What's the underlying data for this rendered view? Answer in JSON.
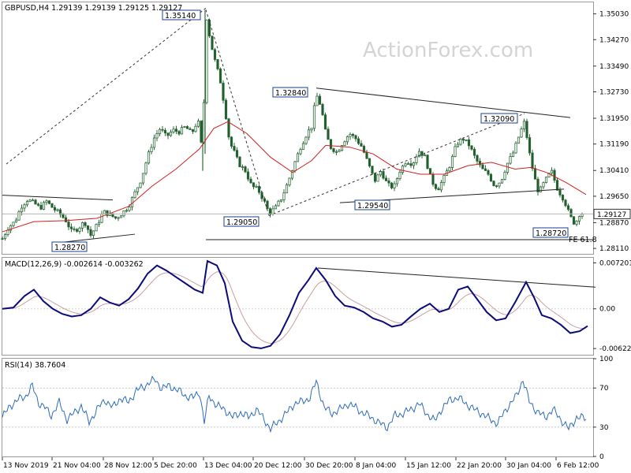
{
  "chart_data": [
    {
      "type": "candlestick",
      "title": "GBPUSD,H4  1.29139 1.29139 1.29125 1.29127",
      "watermark": "ActionForex.com",
      "y_ticks": [
        "1.35030",
        "1.34270",
        "1.33490",
        "1.32730",
        "1.31950",
        "1.31190",
        "1.30410",
        "1.29650",
        "1.28870",
        "1.28110"
      ],
      "ylim": [
        1.2795,
        1.3537
      ],
      "current_price": "1.29127",
      "x_ticks": [
        "13 Nov 2019",
        "21 Nov 04:00",
        "28 Nov 12:00",
        "5 Dec 20:00",
        "13 Dec 04:00",
        "20 Dec 12:00",
        "30 Dec 20:00",
        "8 Jan 04:00",
        "15 Jan 12:00",
        "22 Jan 20:00",
        "30 Jan 04:00",
        "6 Feb 12:00"
      ],
      "annotations": [
        "1.35140",
        "1.32840",
        "1.32090",
        "1.29050",
        "1.29540",
        "1.28720",
        "1.28270",
        "FE 61.8"
      ],
      "close_path": [
        [
          0,
          1.284
        ],
        [
          8,
          1.2875
        ],
        [
          16,
          1.289
        ],
        [
          24,
          1.2935
        ],
        [
          32,
          1.2955
        ],
        [
          40,
          1.2945
        ],
        [
          48,
          1.293
        ],
        [
          56,
          1.295
        ],
        [
          64,
          1.293
        ],
        [
          72,
          1.2915
        ],
        [
          80,
          1.2895
        ],
        [
          88,
          1.286
        ],
        [
          96,
          1.287
        ],
        [
          104,
          1.289
        ],
        [
          112,
          1.285
        ],
        [
          120,
          1.288
        ],
        [
          128,
          1.292
        ],
        [
          136,
          1.291
        ],
        [
          144,
          1.29
        ],
        [
          152,
          1.2915
        ],
        [
          160,
          1.2935
        ],
        [
          168,
          1.2975
        ],
        [
          176,
          1.3015
        ],
        [
          184,
          1.308
        ],
        [
          192,
          1.3135
        ],
        [
          200,
          1.3165
        ],
        [
          208,
          1.314
        ],
        [
          216,
          1.316
        ],
        [
          224,
          1.3155
        ],
        [
          232,
          1.317
        ],
        [
          240,
          1.315
        ],
        [
          248,
          1.319
        ],
        [
          254,
          1.3085
        ],
        [
          258,
          1.3505
        ],
        [
          264,
          1.342
        ],
        [
          270,
          1.336
        ],
        [
          276,
          1.331
        ],
        [
          282,
          1.3225
        ],
        [
          288,
          1.3125
        ],
        [
          294,
          1.3095
        ],
        [
          300,
          1.306
        ],
        [
          308,
          1.304
        ],
        [
          316,
          1.2995
        ],
        [
          324,
          1.2985
        ],
        [
          332,
          1.295
        ],
        [
          338,
          1.2915
        ],
        [
          346,
          1.293
        ],
        [
          354,
          1.296
        ],
        [
          362,
          1.3005
        ],
        [
          370,
          1.306
        ],
        [
          378,
          1.311
        ],
        [
          386,
          1.315
        ],
        [
          392,
          1.317
        ],
        [
          398,
          1.3265
        ],
        [
          404,
          1.323
        ],
        [
          410,
          1.315
        ],
        [
          416,
          1.311
        ],
        [
          424,
          1.3095
        ],
        [
          432,
          1.3125
        ],
        [
          440,
          1.315
        ],
        [
          448,
          1.3135
        ],
        [
          456,
          1.311
        ],
        [
          464,
          1.306
        ],
        [
          472,
          1.301
        ],
        [
          480,
          1.304
        ],
        [
          488,
          1.3
        ],
        [
          496,
          1.299
        ],
        [
          504,
          1.304
        ],
        [
          512,
          1.307
        ],
        [
          520,
          1.306
        ],
        [
          528,
          1.31
        ],
        [
          536,
          1.308
        ],
        [
          544,
          1.301
        ],
        [
          552,
          1.2985
        ],
        [
          560,
          1.302
        ],
        [
          568,
          1.306
        ],
        [
          576,
          1.312
        ],
        [
          584,
          1.3135
        ],
        [
          592,
          1.3115
        ],
        [
          600,
          1.3075
        ],
        [
          608,
          1.3045
        ],
        [
          616,
          1.303
        ],
        [
          624,
          1.2995
        ],
        [
          632,
          1.301
        ],
        [
          640,
          1.306
        ],
        [
          648,
          1.3095
        ],
        [
          656,
          1.315
        ],
        [
          662,
          1.3185
        ],
        [
          668,
          1.3095
        ],
        [
          674,
          1.3025
        ],
        [
          680,
          1.2975
        ],
        [
          688,
          1.301
        ],
        [
          696,
          1.304
        ],
        [
          704,
          1.2985
        ],
        [
          712,
          1.2955
        ],
        [
          720,
          1.2905
        ],
        [
          726,
          1.2882
        ],
        [
          732,
          1.2915
        ],
        [
          738,
          1.2913
        ]
      ],
      "moving_average": [
        [
          0,
          1.286
        ],
        [
          40,
          1.289
        ],
        [
          80,
          1.2893
        ],
        [
          120,
          1.29
        ],
        [
          160,
          1.2935
        ],
        [
          190,
          1.2995
        ],
        [
          220,
          1.3045
        ],
        [
          250,
          1.3105
        ],
        [
          268,
          1.3165
        ],
        [
          286,
          1.3185
        ],
        [
          310,
          1.315
        ],
        [
          340,
          1.308
        ],
        [
          368,
          1.3035
        ],
        [
          392,
          1.307
        ],
        [
          410,
          1.3115
        ],
        [
          440,
          1.311
        ],
        [
          470,
          1.309
        ],
        [
          500,
          1.3045
        ],
        [
          530,
          1.303
        ],
        [
          560,
          1.303
        ],
        [
          590,
          1.3055
        ],
        [
          620,
          1.3065
        ],
        [
          650,
          1.3045
        ],
        [
          670,
          1.305
        ],
        [
          690,
          1.3035
        ],
        [
          715,
          1.3005
        ],
        [
          740,
          1.297
        ]
      ],
      "trendlines": [
        [
          [
            5,
            1.306
          ],
          [
            258,
            1.352
          ]
        ],
        [
          [
            0,
            1.2968
          ],
          [
            140,
            1.2954
          ]
        ],
        [
          [
            64,
            1.2826
          ],
          [
            168,
            1.2853
          ]
        ],
        [
          [
            258,
            1.3515
          ],
          [
            338,
            1.2908
          ]
        ],
        [
          [
            338,
            1.2908
          ],
          [
            662,
            1.3209
          ]
        ],
        [
          [
            398,
            1.3284
          ],
          [
            720,
            1.3197
          ]
        ],
        [
          [
            428,
            1.2946
          ],
          [
            712,
            1.2986
          ]
        ],
        [
          [
            258,
            1.2837
          ],
          [
            750,
            1.2837
          ]
        ]
      ]
    },
    {
      "type": "line",
      "title": "MACD(12,26,9) -0.002614 -0.003262",
      "y_ticks": [
        "0.007201",
        "0.00",
        "-0.006229"
      ],
      "ylim": [
        -0.0072,
        0.008
      ],
      "series": [
        {
          "values": [
            [
              0,
              0.0
            ],
            [
              14,
              0.0002
            ],
            [
              28,
              0.002
            ],
            [
              40,
              0.003
            ],
            [
              52,
              0.0012
            ],
            [
              64,
              0.0
            ],
            [
              76,
              -0.0008
            ],
            [
              88,
              -0.0012
            ],
            [
              100,
              -0.001
            ],
            [
              112,
              0.0
            ],
            [
              124,
              0.0018
            ],
            [
              136,
              0.001
            ],
            [
              148,
              0.0005
            ],
            [
              160,
              0.0015
            ],
            [
              172,
              0.0032
            ],
            [
              184,
              0.0055
            ],
            [
              196,
              0.0068
            ],
            [
              208,
              0.006
            ],
            [
              220,
              0.005
            ],
            [
              232,
              0.004
            ],
            [
              244,
              0.003
            ],
            [
              254,
              0.0025
            ],
            [
              260,
              0.0075
            ],
            [
              272,
              0.0068
            ],
            [
              282,
              0.004
            ],
            [
              292,
              -0.002
            ],
            [
              304,
              -0.005
            ],
            [
              316,
              -0.006
            ],
            [
              328,
              -0.0062
            ],
            [
              340,
              -0.0058
            ],
            [
              352,
              -0.004
            ],
            [
              364,
              -0.001
            ],
            [
              376,
              0.0025
            ],
            [
              388,
              0.0045
            ],
            [
              398,
              0.0064
            ],
            [
              410,
              0.0045
            ],
            [
              422,
              0.002
            ],
            [
              434,
              0.0005
            ],
            [
              446,
              0.0002
            ],
            [
              458,
              -0.0005
            ],
            [
              470,
              -0.0015
            ],
            [
              482,
              -0.002
            ],
            [
              494,
              -0.0028
            ],
            [
              506,
              -0.0025
            ],
            [
              518,
              -0.0012
            ],
            [
              530,
              0.0
            ],
            [
              542,
              0.0008
            ],
            [
              554,
              -0.0005
            ],
            [
              566,
              0.0
            ],
            [
              578,
              0.003
            ],
            [
              590,
              0.0035
            ],
            [
              602,
              0.0015
            ],
            [
              614,
              -0.0005
            ],
            [
              626,
              -0.0018
            ],
            [
              638,
              -0.0015
            ],
            [
              650,
              0.001
            ],
            [
              664,
              0.0042
            ],
            [
              674,
              0.0018
            ],
            [
              684,
              -0.001
            ],
            [
              696,
              -0.0015
            ],
            [
              708,
              -0.0025
            ],
            [
              720,
              -0.0038
            ],
            [
              732,
              -0.0035
            ],
            [
              742,
              -0.0027
            ]
          ]
        }
      ],
      "trendline": [
        [
          400,
          0.0064
        ],
        [
          752,
          0.0034
        ]
      ]
    },
    {
      "type": "line",
      "title": "RSI(14) 38.7604",
      "y_ticks": [
        "100",
        "70",
        "30",
        "0"
      ],
      "ylim": [
        0,
        100
      ],
      "series": [
        {
          "values": [
            [
              0,
              40
            ],
            [
              10,
              52
            ],
            [
              20,
              58
            ],
            [
              30,
              62
            ],
            [
              38,
              72
            ],
            [
              46,
              55
            ],
            [
              54,
              50
            ],
            [
              62,
              42
            ],
            [
              72,
              55
            ],
            [
              82,
              38
            ],
            [
              92,
              45
            ],
            [
              100,
              52
            ],
            [
              110,
              35
            ],
            [
              120,
              48
            ],
            [
              130,
              58
            ],
            [
              140,
              50
            ],
            [
              150,
              60
            ],
            [
              160,
              55
            ],
            [
              170,
              68
            ],
            [
              178,
              70
            ],
            [
              186,
              76
            ],
            [
              194,
              78
            ],
            [
              202,
              70
            ],
            [
              212,
              72
            ],
            [
              222,
              68
            ],
            [
              232,
              62
            ],
            [
              242,
              60
            ],
            [
              250,
              66
            ],
            [
              256,
              35
            ],
            [
              262,
              62
            ],
            [
              272,
              52
            ],
            [
              282,
              48
            ],
            [
              292,
              40
            ],
            [
              302,
              45
            ],
            [
              312,
              40
            ],
            [
              322,
              48
            ],
            [
              332,
              38
            ],
            [
              340,
              28
            ],
            [
              350,
              36
            ],
            [
              360,
              44
            ],
            [
              370,
              54
            ],
            [
              380,
              56
            ],
            [
              390,
              60
            ],
            [
              398,
              77
            ],
            [
              408,
              50
            ],
            [
              418,
              44
            ],
            [
              428,
              48
            ],
            [
              438,
              54
            ],
            [
              448,
              50
            ],
            [
              458,
              44
            ],
            [
              468,
              40
            ],
            [
              478,
              34
            ],
            [
              488,
              30
            ],
            [
              498,
              42
            ],
            [
              508,
              44
            ],
            [
              518,
              48
            ],
            [
              528,
              54
            ],
            [
              538,
              44
            ],
            [
              548,
              36
            ],
            [
              558,
              50
            ],
            [
              568,
              58
            ],
            [
              578,
              60
            ],
            [
              588,
              54
            ],
            [
              598,
              48
            ],
            [
              608,
              44
            ],
            [
              618,
              38
            ],
            [
              628,
              34
            ],
            [
              640,
              50
            ],
            [
              652,
              62
            ],
            [
              660,
              79
            ],
            [
              668,
              56
            ],
            [
              678,
              46
            ],
            [
              688,
              40
            ],
            [
              698,
              48
            ],
            [
              708,
              38
            ],
            [
              718,
              28
            ],
            [
              728,
              40
            ],
            [
              740,
              39
            ]
          ]
        }
      ]
    }
  ]
}
